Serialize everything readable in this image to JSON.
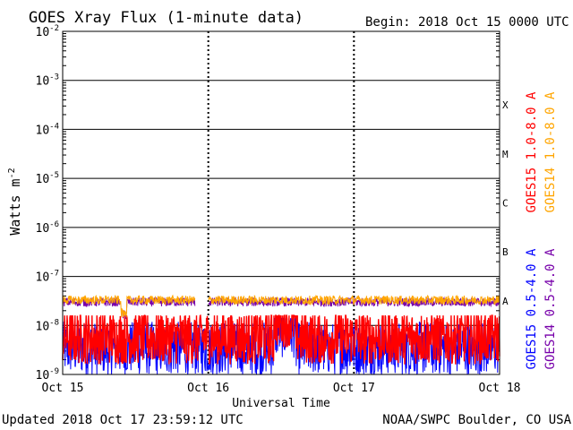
{
  "chart_data": {
    "type": "line",
    "title": "GOES Xray Flux (1-minute data)",
    "begin_label": "Begin:  2018 Oct 15 0000 UTC",
    "xlabel": "Universal Time",
    "ylabel_base": "Watts m",
    "ylabel_exp": "-2",
    "y_scale": "log",
    "ylim": [
      1e-09,
      0.01
    ],
    "x_range_days": [
      0,
      3
    ],
    "x_ticks": [
      "Oct 15",
      "Oct 16",
      "Oct 17",
      "Oct 18"
    ],
    "y_ticks": [
      {
        "base": "10",
        "exp": "-9"
      },
      {
        "base": "10",
        "exp": "-8"
      },
      {
        "base": "10",
        "exp": "-7"
      },
      {
        "base": "10",
        "exp": "-6"
      },
      {
        "base": "10",
        "exp": "-5"
      },
      {
        "base": "10",
        "exp": "-4"
      },
      {
        "base": "10",
        "exp": "-3"
      },
      {
        "base": "10",
        "exp": "-2"
      }
    ],
    "flare_classes": [
      "A",
      "B",
      "C",
      "M",
      "X"
    ],
    "grid": true,
    "series": [
      {
        "name": "GOES15 1.0-8.0 A",
        "color": "#ff0000",
        "typical_value": 5e-09,
        "range": [
          1e-09,
          1.6e-08
        ]
      },
      {
        "name": "GOES14 1.0-8.0 A",
        "color": "#ffa500",
        "typical_value": 3.3e-08,
        "range": [
          1.4e-08,
          4.2e-08
        ]
      },
      {
        "name": "GOES15 0.5-4.0 A",
        "color": "#0000ff",
        "typical_value": 3e-09,
        "range": [
          1e-09,
          1.4e-08
        ]
      },
      {
        "name": "GOES14 0.5-4.0 A",
        "color": "#7700aa",
        "typical_value": 3e-08,
        "range": [
          1.3e-08,
          3.8e-08
        ]
      }
    ]
  },
  "footer": {
    "updated": "Updated 2018 Oct 17 23:59:12 UTC",
    "source": "NOAA/SWPC Boulder, CO USA"
  }
}
